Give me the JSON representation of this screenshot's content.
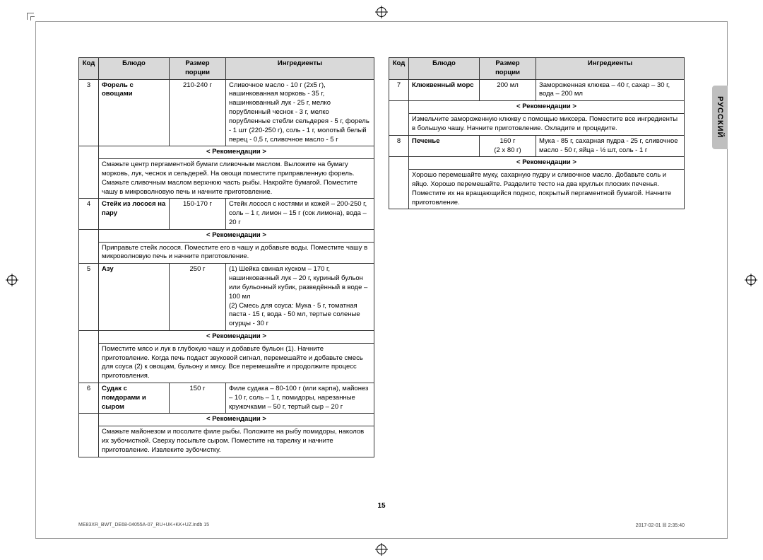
{
  "language_tab": "РУССКИЙ",
  "page_number": "15",
  "footer_left": "ME83XR_BWT_DE68-04055A-07_RU+UK+KK+UZ.indb   15",
  "footer_right": "2017-02-01   ☒ 2:35:40",
  "headers": {
    "code": "Код",
    "dish": "Блюдо",
    "portion": "Размер порции",
    "ingredients": "Ингредиенты",
    "recommendations": "< Рекомендации >"
  },
  "left_rows": [
    {
      "code": "3",
      "dish": "Форель с овощами",
      "portion": "210-240 г",
      "ingredients": "Сливочное масло - 10 г (2x5 г), нашинкованная морковь - 35 г, нашинкованный лук - 25 г, мелко порубленный чеснок - 3 г, мелко порубленные стебли сельдерея - 5 г, форель - 1 шт (220-250 г), соль - 1 г, молотый белый перец - 0,5 г, сливочное масло - 5 г",
      "rec": "Смажьте центр пергаментной бумаги сливочным маслом. Выложите на бумагу морковь, лук, чеснок и сельдерей. На овощи поместите приправленную форель. Смажьте сливочным маслом верхнюю часть рыбы. Накройте бумагой. Поместите чашу в микроволновую печь и начните приготовление."
    },
    {
      "code": "4",
      "dish": "Стейк из лосося на пару",
      "portion": "150-170 г",
      "ingredients": "Стейк лосося с костями и кожей – 200-250 г, соль – 1 г, лимон – 15 г (сок лимона), вода – 20 г",
      "rec": "Приправьте стейк лосося. Поместите его в чашу и добавьте воды. Поместите чашу в микроволновую печь и начните приготовление."
    },
    {
      "code": "5",
      "dish": "Азу",
      "portion": "250 г",
      "ingredients": "(1) Шейка свиная куском – 170 г, нашинкованный лук – 20 г, куриный бульон или бульонный кубик, разведённый в воде – 100 мл\n(2) Смесь для соуса: Мука - 5 г, томатная паста - 15 г, вода - 50 мл, тертые соленые огурцы - 30 г",
      "rec": "Поместите мясо и лук в глубокую чашу и добавьте бульон (1). Начните приготовление. Когда печь подаст звуковой сигнал, перемешайте и добавьте смесь для соуса (2) к овощам, бульону и мясу. Все перемешайте и продолжите процесс приготовления."
    },
    {
      "code": "6",
      "dish": "Судак с помдорами и сыром",
      "portion": "150 г",
      "ingredients": "Филе судака – 80-100 г (или карпа), майонез – 10 г, соль – 1 г, помидоры, нарезанные кружочками – 50 г, тертый сыр – 20 г",
      "rec": "Смажьте майонезом и посолите филе рыбы. Положите на рыбу помидоры, наколов их зубочисткой. Сверху посыпьте сыром. Поместите на тарелку и начните приготовление. Извлеките зубочистку."
    }
  ],
  "right_rows": [
    {
      "code": "7",
      "dish": "Клюквенный морс",
      "portion": "200 мл",
      "ingredients": "Замороженная клюква – 40 г, сахар – 30 г, вода – 200 мл",
      "rec": "Измельчите замороженную клюкву с помощью миксера. Поместите все ингредиенты в большую чашу. Начните приготовление. Охладите и процедите."
    },
    {
      "code": "8",
      "dish": "Печенье",
      "portion": "160 г\n(2 x 80 г)",
      "ingredients": "Мука - 85 г, сахарная пудра - 25 г, сливочное масло - 50 г, яйца - ½ шт, соль - 1 г",
      "rec": "Хорошо перемешайте муку, сахарную пудру и сливочное масло. Добавьте соль и яйцо. Хорошо перемешайте. Разделите тесто на два круглых плоских печенья. Поместите их на вращающийся поднос, покрытый пергаментной бумагой. Начните приготовление."
    }
  ]
}
